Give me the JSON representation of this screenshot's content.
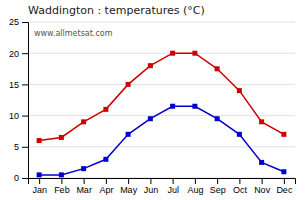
{
  "chart_data": {
    "type": "line",
    "title": "Waddington : temperatures (°C)",
    "categories": [
      "Jan",
      "Feb",
      "Mar",
      "Apr",
      "May",
      "Jun",
      "Jul",
      "Aug",
      "Sep",
      "Oct",
      "Nov",
      "Dec"
    ],
    "series": [
      {
        "color": "#cc0000",
        "marker": "square",
        "line_style": "solid",
        "values": [
          6.0,
          6.5,
          9.0,
          11.0,
          15.0,
          18.0,
          20.0,
          20.0,
          17.5,
          14.0,
          9.0,
          7.0
        ]
      },
      {
        "color": "#0000cc",
        "marker": "square",
        "line_style": "solid",
        "values": [
          0.5,
          0.5,
          1.5,
          3.0,
          7.0,
          9.5,
          11.5,
          11.5,
          9.5,
          7.0,
          2.5,
          1.0
        ]
      }
    ],
    "ylim": [
      0,
      25
    ],
    "yticks": [
      0,
      5,
      10,
      15,
      20,
      25
    ],
    "grid": true,
    "annotations": [
      {
        "text": "www.allmetsat.com"
      }
    ]
  }
}
